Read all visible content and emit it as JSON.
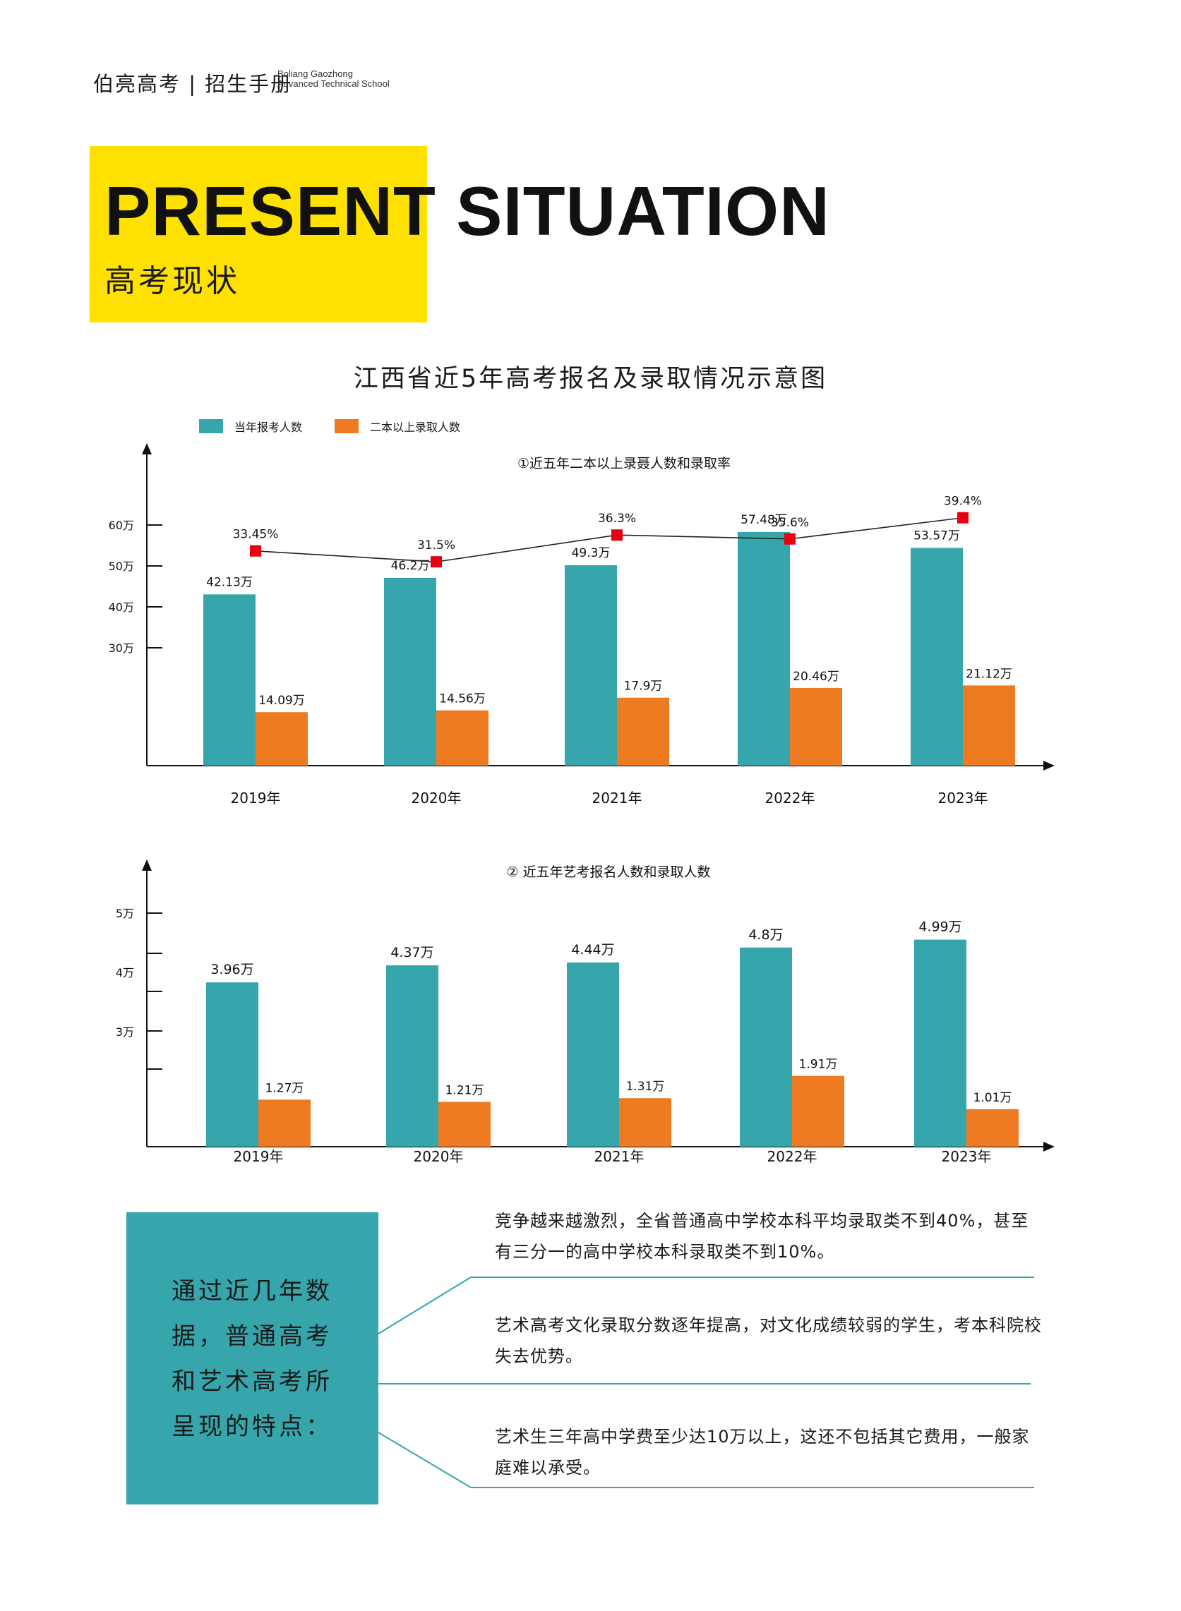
{
  "header": {
    "brand_cn": "伯亮高考 | 招生手册",
    "brand_en_1": "Boliang Gaozhong",
    "brand_en_2": "Advanced Technical School"
  },
  "hero": {
    "title_en": "PRESENT SITUATION",
    "title_cn": "高考现状"
  },
  "main_title": "江西省近5年高考报名及录取情况示意图",
  "legend": {
    "registered": "当年报考人数",
    "admitted": "二本以上录取人数"
  },
  "colors": {
    "teal": "#36A6AC",
    "orange": "#EE7B22",
    "marker": "#E60012",
    "yellow": "#FFE100"
  },
  "chart_data": [
    {
      "type": "bar",
      "title": "①近五年二本以上录聂人数和录取率",
      "categories": [
        "2019年",
        "2020年",
        "2021年",
        "2022年",
        "2023年"
      ],
      "y_ticks": [
        "30万",
        "40万",
        "50万",
        "60万"
      ],
      "series": [
        {
          "name": "当年报考人数",
          "values": [
            42.13,
            46.2,
            49.3,
            57.48,
            53.57
          ],
          "labels": [
            "42.13万",
            "46.2万",
            "49.3万",
            "57.48万",
            "53.57万"
          ]
        },
        {
          "name": "二本以上录取人数",
          "values": [
            14.09,
            14.56,
            17.9,
            20.46,
            21.12
          ],
          "labels": [
            "14.09万",
            "14.56万",
            "17.9万",
            "20.46万",
            "21.12万"
          ]
        }
      ],
      "rate": {
        "values": [
          33.45,
          31.5,
          36.3,
          35.6,
          39.4
        ],
        "labels": [
          "33.45%",
          "31.5%",
          "36.3%",
          "35.6%",
          "39.4%"
        ]
      }
    },
    {
      "type": "bar",
      "title": "② 近五年艺考报名人数和录取人数",
      "categories": [
        "2019年",
        "2020年",
        "2021年",
        "2022年",
        "2023年"
      ],
      "y_ticks": [
        "3万",
        "4万",
        "5万"
      ],
      "series": [
        {
          "name": "当年报考人数",
          "values": [
            3.96,
            4.37,
            4.44,
            4.8,
            4.99
          ],
          "labels": [
            "3.96万",
            "4.37万",
            "4.44万",
            "4.8万",
            "4.99万"
          ]
        },
        {
          "name": "二本以上录取人数",
          "values": [
            1.27,
            1.21,
            1.31,
            1.91,
            1.01
          ],
          "labels": [
            "1.27万",
            "1.21万",
            "1.31万",
            "1.91万",
            "1.01万"
          ]
        }
      ]
    }
  ],
  "summary": {
    "box_text": "通过近几年数据，普通高考和艺术高考所呈现的特点：",
    "notes": [
      "竞争越来越激烈，全省普通高中学校本科平均录取类不到40%，甚至有三分一的高中学校本科录取类不到10%。",
      "艺术高考文化录取分数逐年提高，对文化成绩较弱的学生，考本科院校失去优势。",
      "艺术生三年高中学费至少达10万以上，这还不包括其它费用，一般家庭难以承受。"
    ]
  }
}
